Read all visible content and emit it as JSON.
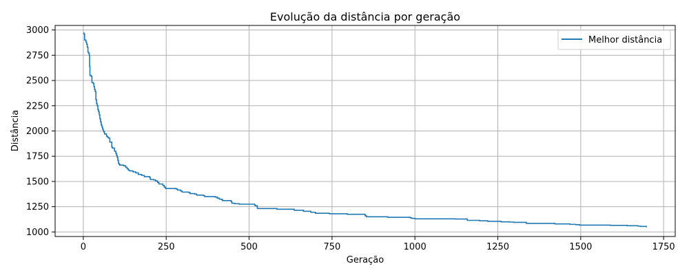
{
  "chart_data": {
    "type": "line",
    "title": "Evolução da distância por geração",
    "xlabel": "Geração",
    "ylabel": "Distância",
    "xlim": [
      -85,
      1785
    ],
    "ylim": [
      955,
      3045
    ],
    "xticks": [
      0,
      250,
      500,
      750,
      1000,
      1250,
      1500,
      1750
    ],
    "yticks": [
      1000,
      1250,
      1500,
      1750,
      2000,
      2250,
      2500,
      2750,
      3000
    ],
    "grid": true,
    "legend_position": "top-right",
    "colors": {
      "series": "#1f77b4",
      "grid": "#b0b0b0",
      "axis": "#000000"
    },
    "series": [
      {
        "name": "Melhor distância",
        "step": true,
        "points": [
          [
            0,
            2970
          ],
          [
            2,
            2960
          ],
          [
            4,
            2900
          ],
          [
            8,
            2880
          ],
          [
            10,
            2860
          ],
          [
            12,
            2830
          ],
          [
            14,
            2780
          ],
          [
            16,
            2770
          ],
          [
            18,
            2750
          ],
          [
            19,
            2640
          ],
          [
            20,
            2550
          ],
          [
            24,
            2540
          ],
          [
            26,
            2480
          ],
          [
            30,
            2470
          ],
          [
            32,
            2440
          ],
          [
            34,
            2410
          ],
          [
            36,
            2390
          ],
          [
            38,
            2310
          ],
          [
            40,
            2270
          ],
          [
            42,
            2250
          ],
          [
            44,
            2210
          ],
          [
            46,
            2190
          ],
          [
            48,
            2160
          ],
          [
            50,
            2120
          ],
          [
            52,
            2090
          ],
          [
            54,
            2060
          ],
          [
            56,
            2040
          ],
          [
            58,
            2020
          ],
          [
            60,
            2000
          ],
          [
            62,
            1990
          ],
          [
            64,
            1970
          ],
          [
            70,
            1950
          ],
          [
            72,
            1940
          ],
          [
            76,
            1930
          ],
          [
            80,
            1890
          ],
          [
            86,
            1840
          ],
          [
            88,
            1830
          ],
          [
            94,
            1800
          ],
          [
            98,
            1780
          ],
          [
            100,
            1760
          ],
          [
            102,
            1740
          ],
          [
            104,
            1710
          ],
          [
            106,
            1680
          ],
          [
            108,
            1670
          ],
          [
            110,
            1662
          ],
          [
            122,
            1655
          ],
          [
            128,
            1640
          ],
          [
            132,
            1625
          ],
          [
            136,
            1612
          ],
          [
            140,
            1605
          ],
          [
            150,
            1595
          ],
          [
            158,
            1585
          ],
          [
            166,
            1570
          ],
          [
            176,
            1560
          ],
          [
            184,
            1548
          ],
          [
            200,
            1540
          ],
          [
            202,
            1520
          ],
          [
            212,
            1515
          ],
          [
            218,
            1505
          ],
          [
            224,
            1490
          ],
          [
            228,
            1475
          ],
          [
            240,
            1460
          ],
          [
            244,
            1445
          ],
          [
            248,
            1430
          ],
          [
            280,
            1425
          ],
          [
            284,
            1415
          ],
          [
            294,
            1405
          ],
          [
            298,
            1395
          ],
          [
            318,
            1390
          ],
          [
            322,
            1380
          ],
          [
            336,
            1375
          ],
          [
            342,
            1365
          ],
          [
            362,
            1360
          ],
          [
            366,
            1350
          ],
          [
            398,
            1345
          ],
          [
            404,
            1335
          ],
          [
            410,
            1325
          ],
          [
            418,
            1318
          ],
          [
            420,
            1310
          ],
          [
            446,
            1300
          ],
          [
            448,
            1285
          ],
          [
            456,
            1280
          ],
          [
            470,
            1275
          ],
          [
            516,
            1270
          ],
          [
            518,
            1260
          ],
          [
            524,
            1250
          ],
          [
            525,
            1232
          ],
          [
            584,
            1225
          ],
          [
            636,
            1215
          ],
          [
            664,
            1205
          ],
          [
            686,
            1195
          ],
          [
            700,
            1185
          ],
          [
            742,
            1180
          ],
          [
            796,
            1175
          ],
          [
            850,
            1160
          ],
          [
            854,
            1150
          ],
          [
            918,
            1145
          ],
          [
            986,
            1140
          ],
          [
            990,
            1135
          ],
          [
            1000,
            1130
          ],
          [
            1122,
            1128
          ],
          [
            1158,
            1115
          ],
          [
            1195,
            1110
          ],
          [
            1220,
            1105
          ],
          [
            1260,
            1100
          ],
          [
            1286,
            1098
          ],
          [
            1298,
            1095
          ],
          [
            1336,
            1085
          ],
          [
            1422,
            1080
          ],
          [
            1468,
            1075
          ],
          [
            1485,
            1072
          ],
          [
            1496,
            1068
          ],
          [
            1590,
            1065
          ],
          [
            1640,
            1062
          ],
          [
            1672,
            1058
          ],
          [
            1680,
            1055
          ],
          [
            1698,
            1052
          ],
          [
            1700,
            1052
          ]
        ]
      }
    ]
  }
}
